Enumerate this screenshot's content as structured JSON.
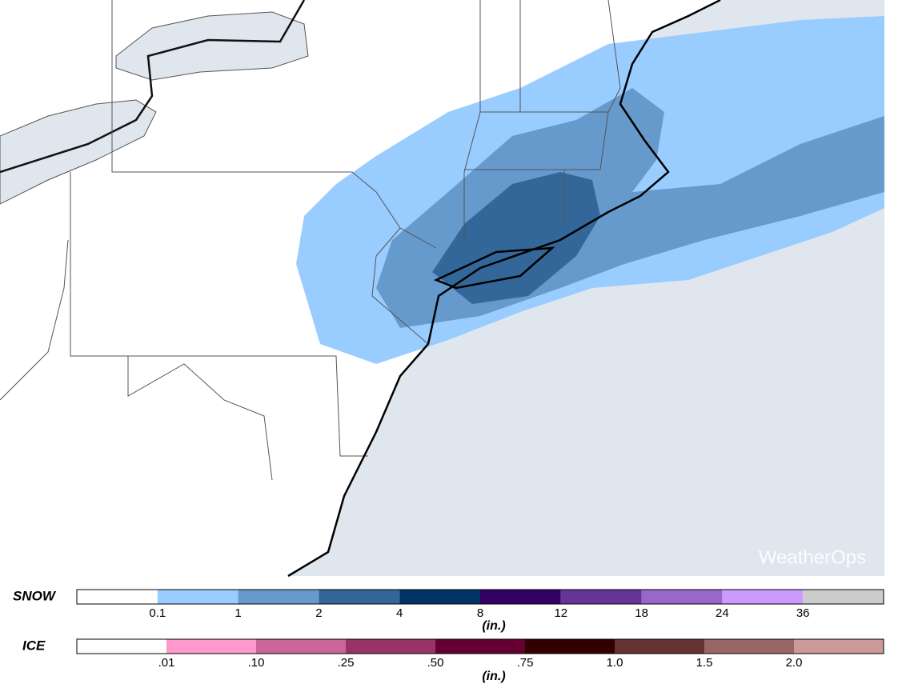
{
  "legend": {
    "snow": {
      "label": "SNOW",
      "colors": [
        "#ffffff",
        "#99ccff",
        "#6699cc",
        "#336699",
        "#003366",
        "#330066",
        "#663399",
        "#9966cc",
        "#cc99ff",
        "#cccccc"
      ],
      "ticks": [
        "0.1",
        "1",
        "2",
        "4",
        "8",
        "12",
        "18",
        "24",
        "36"
      ],
      "unit": "(in.)"
    },
    "ice": {
      "label": "ICE",
      "colors": [
        "#ffffff",
        "#ff99cc",
        "#cc6699",
        "#993366",
        "#660033",
        "#330000",
        "#663333",
        "#996666",
        "#cc9999"
      ],
      "ticks": [
        ".01",
        ".10",
        ".25",
        ".50",
        ".75",
        "1.0",
        "1.5",
        "2.0"
      ],
      "unit": "(in.)"
    }
  },
  "logo": "WeatherOps"
}
